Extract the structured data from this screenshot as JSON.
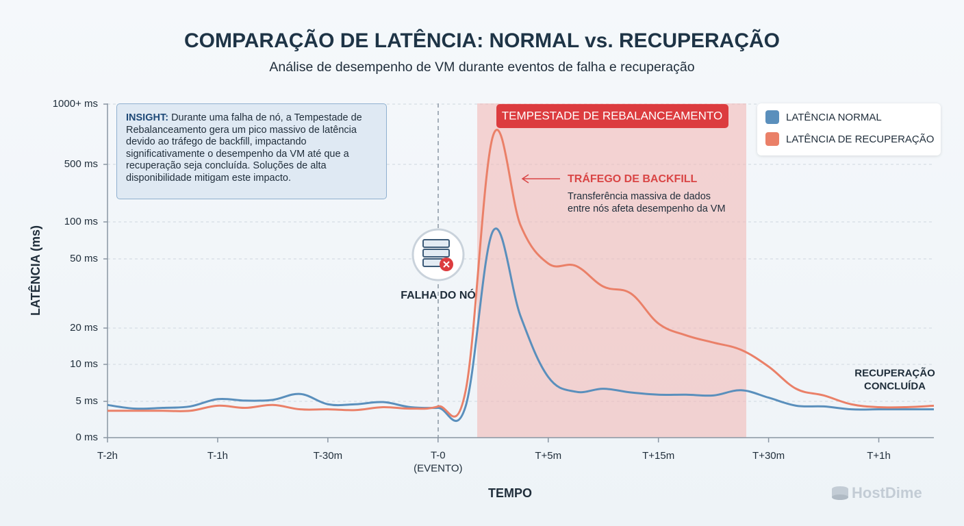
{
  "chart_data": {
    "type": "line",
    "title": "COMPARAÇÃO DE LATÊNCIA: NORMAL vs. RECUPERAÇÃO",
    "subtitle": "Análise de desempenho de VM durante eventos de falha e recuperação",
    "x_label": "TEMPO",
    "y_label": "LATÊNCIA (ms)",
    "categories": [
      "T-2h",
      null,
      null,
      null,
      "T-1h",
      null,
      null,
      null,
      "T-30m",
      null,
      null,
      null,
      "T-0\n(EVENTO)",
      null,
      null,
      null,
      "T+5m",
      null,
      null,
      null,
      "T+15m",
      null,
      null,
      null,
      "T+30m",
      null,
      null,
      null,
      "T+1h",
      null,
      null
    ],
    "series": [
      {
        "name": "LATÊNCIA NORMAL",
        "color": "#5a8fbc",
        "values": [
          4.5,
          4.0,
          4.1,
          4.3,
          5.3,
          5.1,
          5.2,
          6.0,
          4.6,
          4.6,
          4.9,
          4.2,
          4.1,
          4.3,
          88,
          25,
          8.3,
          6.3,
          6.7,
          6.2,
          5.9,
          5.9,
          5.8,
          6.5,
          5.5,
          4.4,
          4.3,
          3.9,
          3.9,
          3.9,
          3.9
        ]
      },
      {
        "name": "LATÊNCIA DE RECUPERAÇÃO",
        "color": "#ea8068",
        "values": [
          3.7,
          3.7,
          3.7,
          3.7,
          4.4,
          4.1,
          4.5,
          3.9,
          3.9,
          3.8,
          4.2,
          4.0,
          4.3,
          6.4,
          740,
          95,
          48,
          47,
          38,
          35,
          22,
          18,
          16,
          14,
          9.7,
          6.7,
          5.8,
          4.6,
          4.2,
          4.2,
          4.4
        ]
      }
    ],
    "ylim": [
      0,
      1000
    ],
    "yticks": [
      {
        "value": 0,
        "label": "0 ms"
      },
      {
        "value": 5,
        "label": "5 ms"
      },
      {
        "value": 10,
        "label": "10 ms"
      },
      {
        "value": 20,
        "label": "20 ms"
      },
      {
        "value": 50,
        "label": "50 ms"
      },
      {
        "value": 100,
        "label": "100 ms"
      },
      {
        "value": 500,
        "label": "500 ms"
      },
      {
        "value": 1000,
        "label": "1000+ ms"
      }
    ],
    "grid": true,
    "legend": "top-right",
    "insight": {
      "label": "INSIGHT:",
      "text": "Durante uma falha de nó, a Tempestade de Rebalanceamento gera um pico massivo de latência devido ao tráfego de backfill, impactando significativamente o desempenho da VM até que a recuperação seja concluída. Soluções de alta disponibilidade mitigam este impacto."
    },
    "annotations": {
      "storm": "TEMPESTADE DE REBALANCEAMENTO",
      "failure": "FALHA DO NÓ",
      "backfill_title": "TRÁFEGO DE BACKFILL",
      "backfill_text": "Transferência massiva de dados\nentre nós afeta desempenho da VM",
      "recovery": "RECUPERAÇÃO\nCONCLUÍDA"
    },
    "brand": "HostDime"
  }
}
